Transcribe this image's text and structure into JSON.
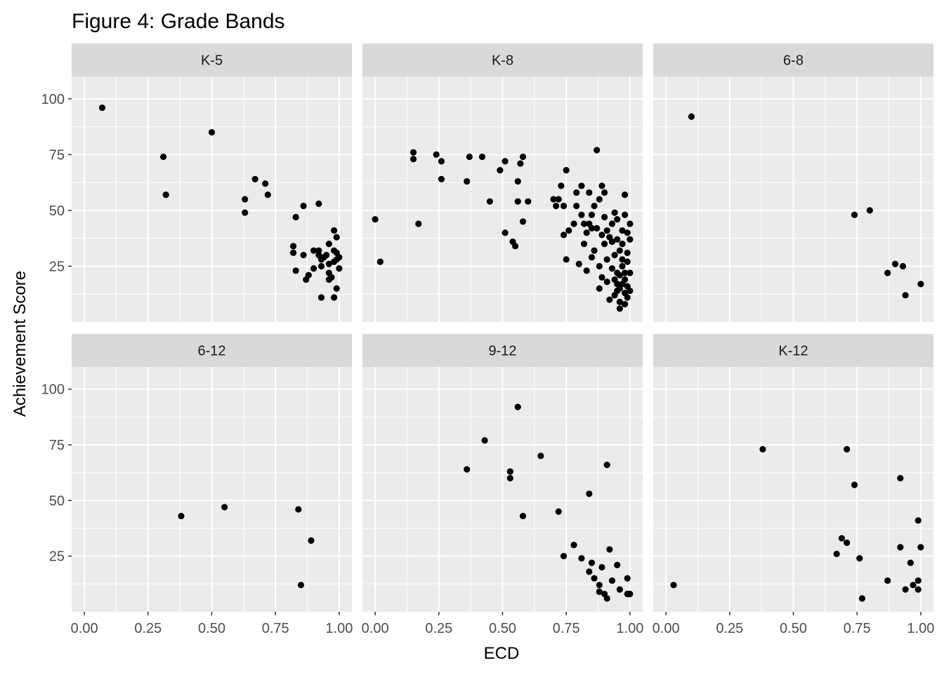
{
  "chart_data": {
    "type": "scatter",
    "title": "Figure 4: Grade Bands",
    "xlabel": "ECD",
    "ylabel": "Achievement Score",
    "xlim": [
      -0.05,
      1.05
    ],
    "ylim": [
      0,
      110
    ],
    "x_ticks": [
      "0.00",
      "0.25",
      "0.50",
      "0.75",
      "1.00"
    ],
    "x_tick_values": [
      0,
      0.25,
      0.5,
      0.75,
      1.0
    ],
    "y_ticks": [
      "25",
      "50",
      "75",
      "100"
    ],
    "y_tick_values": [
      25,
      50,
      75,
      100
    ],
    "grid": true,
    "panel_background": "#ebebeb",
    "strip_background": "#d9d9d9",
    "point_color": "#000000",
    "panels": [
      {
        "name": "K-5",
        "points": [
          [
            0.07,
            96
          ],
          [
            0.31,
            74
          ],
          [
            0.32,
            57
          ],
          [
            0.5,
            85
          ],
          [
            0.63,
            55
          ],
          [
            0.63,
            49
          ],
          [
            0.67,
            64
          ],
          [
            0.71,
            62
          ],
          [
            0.72,
            57
          ],
          [
            0.83,
            47
          ],
          [
            0.86,
            52
          ],
          [
            0.92,
            53
          ],
          [
            0.82,
            34
          ],
          [
            0.82,
            31
          ],
          [
            0.83,
            23
          ],
          [
            0.86,
            30
          ],
          [
            0.87,
            19
          ],
          [
            0.88,
            21
          ],
          [
            0.9,
            32
          ],
          [
            0.9,
            24
          ],
          [
            0.92,
            32
          ],
          [
            0.92,
            30
          ],
          [
            0.93,
            28
          ],
          [
            0.93,
            25
          ],
          [
            0.94,
            29
          ],
          [
            0.96,
            35
          ],
          [
            0.96,
            22
          ],
          [
            0.96,
            19
          ],
          [
            0.97,
            20
          ],
          [
            0.98,
            41
          ],
          [
            0.98,
            32
          ],
          [
            0.98,
            27
          ],
          [
            0.99,
            38
          ],
          [
            0.99,
            31
          ],
          [
            0.99,
            28
          ],
          [
            1.0,
            29
          ],
          [
            1.0,
            24
          ],
          [
            0.99,
            15
          ],
          [
            0.98,
            11
          ],
          [
            0.93,
            11
          ],
          [
            0.96,
            26
          ],
          [
            0.95,
            30
          ]
        ]
      },
      {
        "name": "K-8",
        "points": [
          [
            0.0,
            46
          ],
          [
            0.02,
            27
          ],
          [
            0.15,
            76
          ],
          [
            0.15,
            73
          ],
          [
            0.17,
            44
          ],
          [
            0.24,
            75
          ],
          [
            0.26,
            72
          ],
          [
            0.26,
            64
          ],
          [
            0.36,
            63
          ],
          [
            0.37,
            74
          ],
          [
            0.42,
            74
          ],
          [
            0.45,
            54
          ],
          [
            0.49,
            68
          ],
          [
            0.51,
            72
          ],
          [
            0.51,
            40
          ],
          [
            0.54,
            36
          ],
          [
            0.55,
            34
          ],
          [
            0.56,
            54
          ],
          [
            0.56,
            63
          ],
          [
            0.57,
            71
          ],
          [
            0.58,
            45
          ],
          [
            0.58,
            74
          ],
          [
            0.6,
            54
          ],
          [
            0.7,
            55
          ],
          [
            0.71,
            52
          ],
          [
            0.72,
            55
          ],
          [
            0.73,
            61
          ],
          [
            0.74,
            52
          ],
          [
            0.74,
            39
          ],
          [
            0.75,
            68
          ],
          [
            0.75,
            28
          ],
          [
            0.76,
            41
          ],
          [
            0.78,
            44
          ],
          [
            0.79,
            52
          ],
          [
            0.79,
            58
          ],
          [
            0.8,
            26
          ],
          [
            0.81,
            48
          ],
          [
            0.81,
            61
          ],
          [
            0.82,
            44
          ],
          [
            0.82,
            35
          ],
          [
            0.83,
            23
          ],
          [
            0.83,
            40
          ],
          [
            0.84,
            44
          ],
          [
            0.84,
            58
          ],
          [
            0.85,
            29
          ],
          [
            0.85,
            42
          ],
          [
            0.85,
            48
          ],
          [
            0.86,
            52
          ],
          [
            0.86,
            32
          ],
          [
            0.87,
            77
          ],
          [
            0.87,
            42
          ],
          [
            0.88,
            15
          ],
          [
            0.88,
            25
          ],
          [
            0.88,
            55
          ],
          [
            0.89,
            20
          ],
          [
            0.89,
            39
          ],
          [
            0.89,
            61
          ],
          [
            0.9,
            58
          ],
          [
            0.9,
            35
          ],
          [
            0.9,
            47
          ],
          [
            0.91,
            28
          ],
          [
            0.91,
            41
          ],
          [
            0.91,
            18
          ],
          [
            0.92,
            10
          ],
          [
            0.92,
            38
          ],
          [
            0.93,
            44
          ],
          [
            0.93,
            24
          ],
          [
            0.93,
            36
          ],
          [
            0.94,
            49
          ],
          [
            0.94,
            12
          ],
          [
            0.94,
            30
          ],
          [
            0.95,
            37
          ],
          [
            0.95,
            17
          ],
          [
            0.95,
            46
          ],
          [
            0.95,
            14
          ],
          [
            0.96,
            6
          ],
          [
            0.96,
            21
          ],
          [
            0.96,
            32
          ],
          [
            0.96,
            9
          ],
          [
            0.97,
            25
          ],
          [
            0.97,
            41
          ],
          [
            0.97,
            17
          ],
          [
            0.97,
            35
          ],
          [
            0.98,
            57
          ],
          [
            0.98,
            48
          ],
          [
            0.98,
            22
          ],
          [
            0.98,
            13
          ],
          [
            0.98,
            8
          ],
          [
            0.98,
            19
          ],
          [
            0.99,
            40
          ],
          [
            0.99,
            31
          ],
          [
            0.99,
            27
          ],
          [
            0.99,
            16
          ],
          [
            0.99,
            11
          ],
          [
            1.0,
            44
          ],
          [
            1.0,
            37
          ],
          [
            1.0,
            22
          ],
          [
            1.0,
            14
          ],
          [
            0.97,
            28
          ],
          [
            0.96,
            15
          ],
          [
            0.95,
            22
          ],
          [
            0.94,
            19
          ]
        ]
      },
      {
        "name": "6-8",
        "points": [
          [
            0.1,
            92
          ],
          [
            0.74,
            48
          ],
          [
            0.8,
            50
          ],
          [
            0.87,
            22
          ],
          [
            0.9,
            26
          ],
          [
            0.93,
            25
          ],
          [
            0.94,
            12
          ],
          [
            1.0,
            17
          ]
        ]
      },
      {
        "name": "6-12",
        "points": [
          [
            0.38,
            43
          ],
          [
            0.55,
            47
          ],
          [
            0.84,
            46
          ],
          [
            0.89,
            32
          ],
          [
            0.85,
            12
          ]
        ]
      },
      {
        "name": "9-12",
        "points": [
          [
            0.36,
            64
          ],
          [
            0.43,
            77
          ],
          [
            0.53,
            63
          ],
          [
            0.53,
            60
          ],
          [
            0.56,
            92
          ],
          [
            0.58,
            43
          ],
          [
            0.65,
            70
          ],
          [
            0.72,
            45
          ],
          [
            0.74,
            25
          ],
          [
            0.78,
            30
          ],
          [
            0.81,
            24
          ],
          [
            0.84,
            53
          ],
          [
            0.84,
            18
          ],
          [
            0.85,
            22
          ],
          [
            0.86,
            15
          ],
          [
            0.88,
            12
          ],
          [
            0.88,
            9
          ],
          [
            0.89,
            20
          ],
          [
            0.9,
            8
          ],
          [
            0.91,
            66
          ],
          [
            0.91,
            6
          ],
          [
            0.92,
            28
          ],
          [
            0.93,
            14
          ],
          [
            0.95,
            21
          ],
          [
            0.96,
            10
          ],
          [
            0.99,
            15
          ],
          [
            0.99,
            8
          ],
          [
            1.0,
            8
          ]
        ]
      },
      {
        "name": "K-12",
        "points": [
          [
            0.03,
            12
          ],
          [
            0.38,
            73
          ],
          [
            0.67,
            26
          ],
          [
            0.69,
            33
          ],
          [
            0.71,
            31
          ],
          [
            0.71,
            73
          ],
          [
            0.74,
            57
          ],
          [
            0.76,
            24
          ],
          [
            0.77,
            6
          ],
          [
            0.87,
            14
          ],
          [
            0.92,
            29
          ],
          [
            0.92,
            60
          ],
          [
            0.94,
            10
          ],
          [
            0.96,
            22
          ],
          [
            0.97,
            12
          ],
          [
            0.99,
            41
          ],
          [
            0.99,
            14
          ],
          [
            0.99,
            10
          ],
          [
            1.0,
            29
          ]
        ]
      }
    ]
  }
}
